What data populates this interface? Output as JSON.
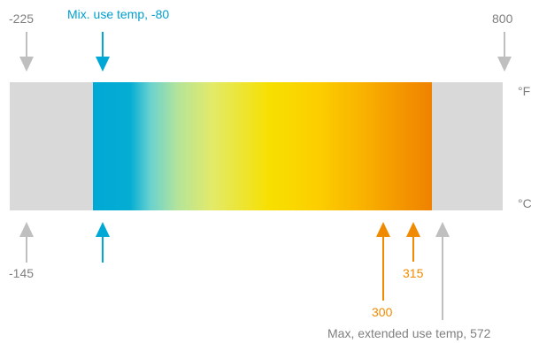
{
  "units": {
    "fahrenheit": "°F",
    "celsius": "°C"
  },
  "scale": {
    "left_f": "-225",
    "left_c": "-145",
    "right_f": "800"
  },
  "markers": {
    "min_use_label": "Mix. use temp, -80",
    "max_use_300": "300",
    "max_use_315": "315",
    "max_extended_label": "Max, extended use temp, 572"
  },
  "colors": {
    "gray": "#bfbfbf",
    "blue": "#00a0cf",
    "orange": "#f08a00",
    "gradient_start": "#00a9d5",
    "gradient_end": "#ef8200"
  }
}
